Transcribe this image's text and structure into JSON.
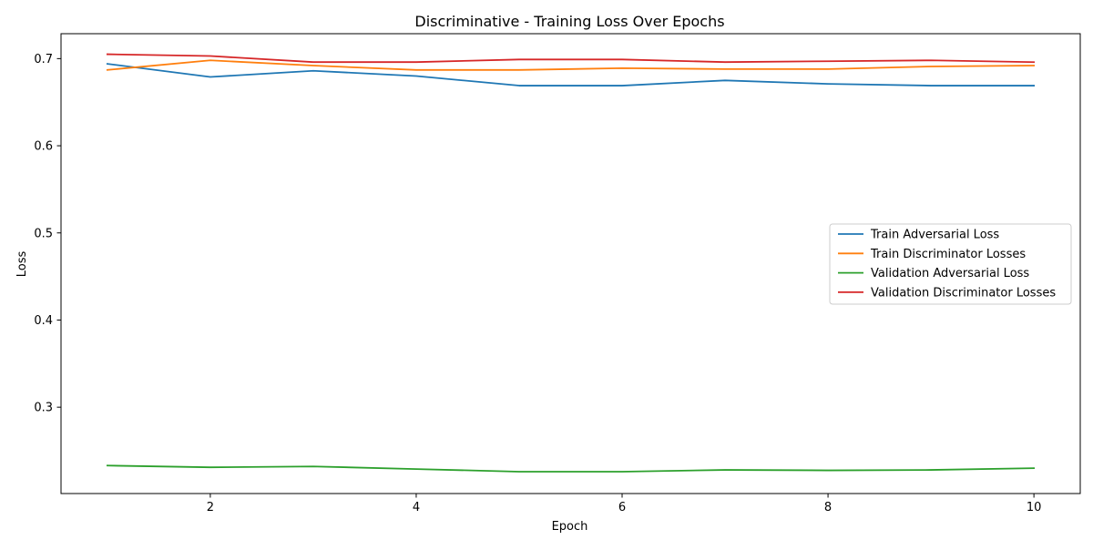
{
  "chart_data": {
    "type": "line",
    "title": "Discriminative - Training Loss Over Epochs",
    "xlabel": "Epoch",
    "ylabel": "Loss",
    "x": [
      1,
      2,
      3,
      4,
      5,
      6,
      7,
      8,
      9,
      10
    ],
    "xlim": [
      0.55,
      10.45
    ],
    "ylim": [
      0.2009,
      0.7286
    ],
    "xticks": [
      2,
      4,
      6,
      8,
      10
    ],
    "yticks": [
      0.3,
      0.4,
      0.5,
      0.6,
      0.7
    ],
    "xtick_labels": [
      "2",
      "4",
      "6",
      "8",
      "10"
    ],
    "ytick_labels": [
      "0.3",
      "0.4",
      "0.5",
      "0.6",
      "0.7"
    ],
    "grid": false,
    "legend_position": "center-right",
    "series": [
      {
        "name": "Train Adversarial Loss",
        "color": "#1f77b4",
        "values": [
          0.694,
          0.679,
          0.686,
          0.68,
          0.669,
          0.669,
          0.675,
          0.671,
          0.669,
          0.669
        ]
      },
      {
        "name": "Train Discriminator Losses",
        "color": "#ff7f0e",
        "values": [
          0.687,
          0.698,
          0.692,
          0.687,
          0.687,
          0.689,
          0.688,
          0.688,
          0.691,
          0.692
        ]
      },
      {
        "name": "Validation Adversarial Loss",
        "color": "#2ca02c",
        "values": [
          0.233,
          0.231,
          0.232,
          0.229,
          0.226,
          0.226,
          0.228,
          0.2275,
          0.228,
          0.23
        ]
      },
      {
        "name": "Validation Discriminator Losses",
        "color": "#d62728",
        "values": [
          0.705,
          0.703,
          0.696,
          0.696,
          0.699,
          0.699,
          0.696,
          0.697,
          0.698,
          0.696
        ]
      }
    ]
  }
}
